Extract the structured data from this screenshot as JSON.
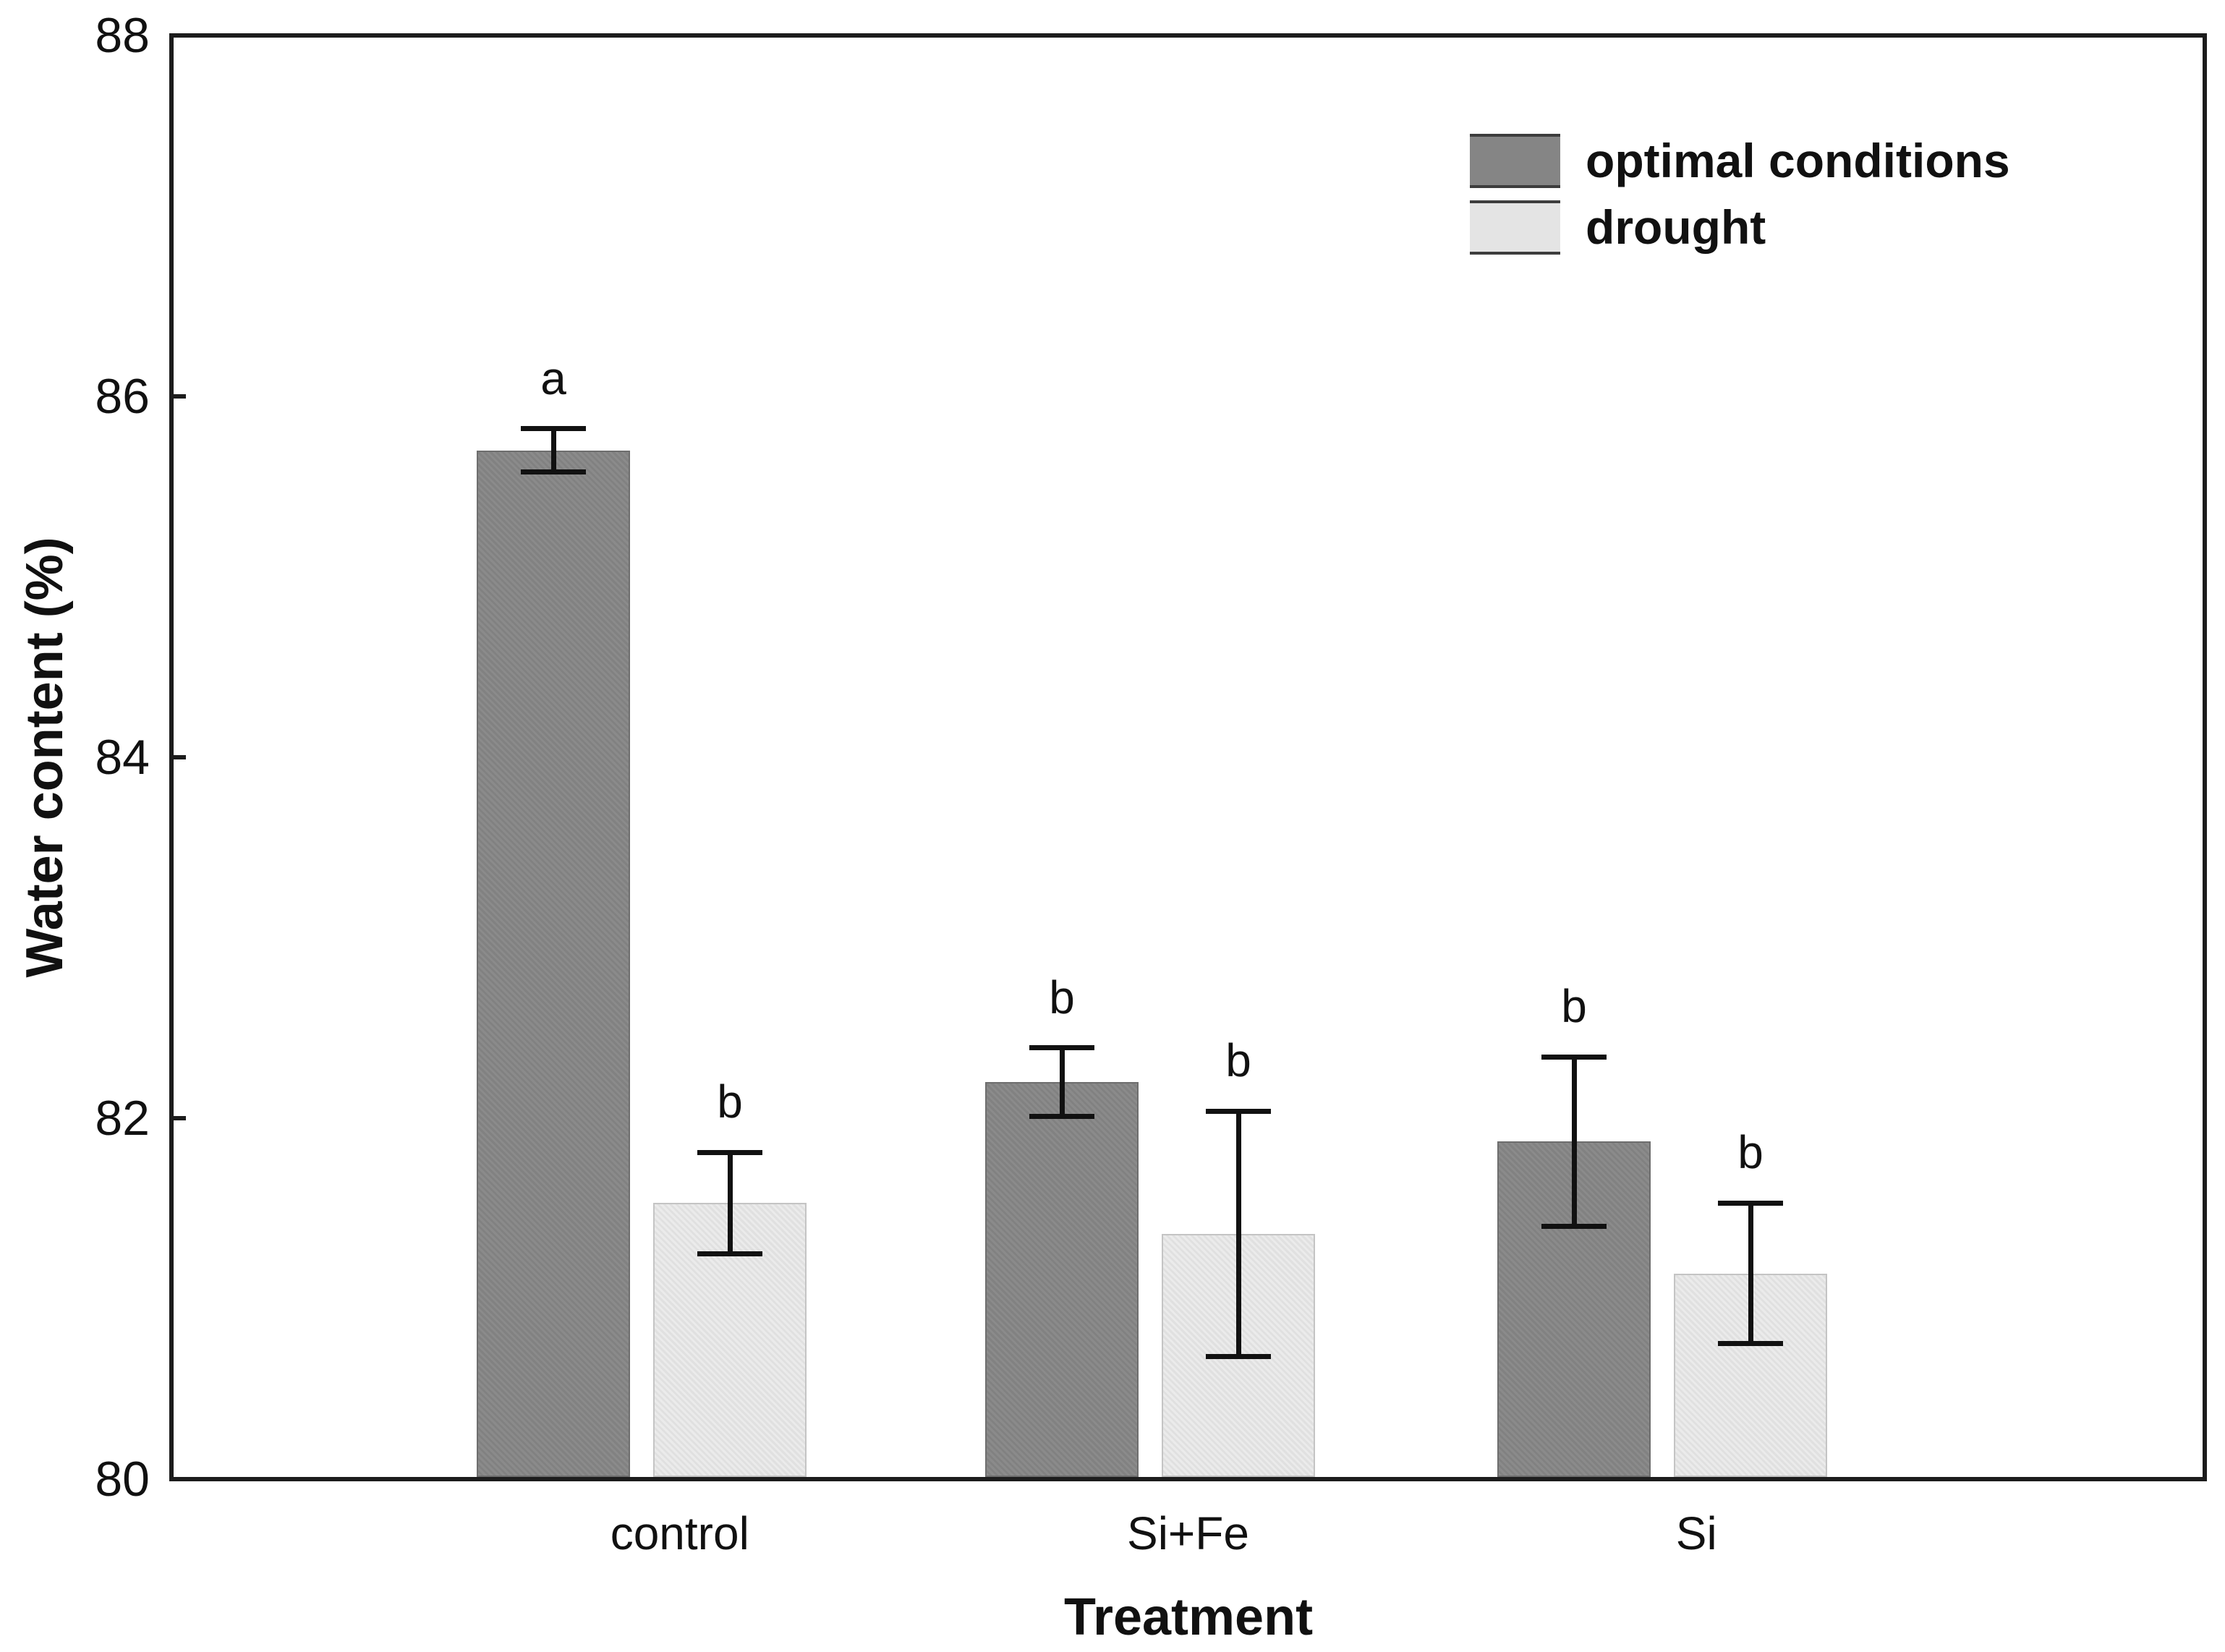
{
  "figure": {
    "y_axis_title": "Water content (%)",
    "x_axis_title": "Treatment"
  },
  "legend": {
    "items": [
      {
        "label": "optimal conditions",
        "color": "#858585"
      },
      {
        "label": "drought",
        "color": "#e4e4e4"
      }
    ]
  },
  "chart_data": {
    "type": "bar",
    "title": "",
    "xlabel": "Treatment",
    "ylabel": "Water content (%)",
    "ylim": [
      80,
      88
    ],
    "yticks": [
      88,
      86,
      84,
      82,
      80
    ],
    "grid": false,
    "error_bars": true,
    "legend_position": "top-right-inside",
    "categories": [
      "control",
      "Si+Fe",
      "Si"
    ],
    "series": [
      {
        "name": "optimal conditions",
        "color": "#858585",
        "values": [
          85.7,
          82.2,
          81.87
        ],
        "errors": [
          0.12,
          0.19,
          0.47
        ],
        "sig_letters": [
          "a",
          "b",
          "b"
        ]
      },
      {
        "name": "drought",
        "color": "#e4e4e4",
        "values": [
          81.53,
          81.36,
          81.14
        ],
        "errors": [
          0.28,
          0.68,
          0.39
        ],
        "sig_letters": [
          "b",
          "b",
          "b"
        ]
      }
    ]
  }
}
